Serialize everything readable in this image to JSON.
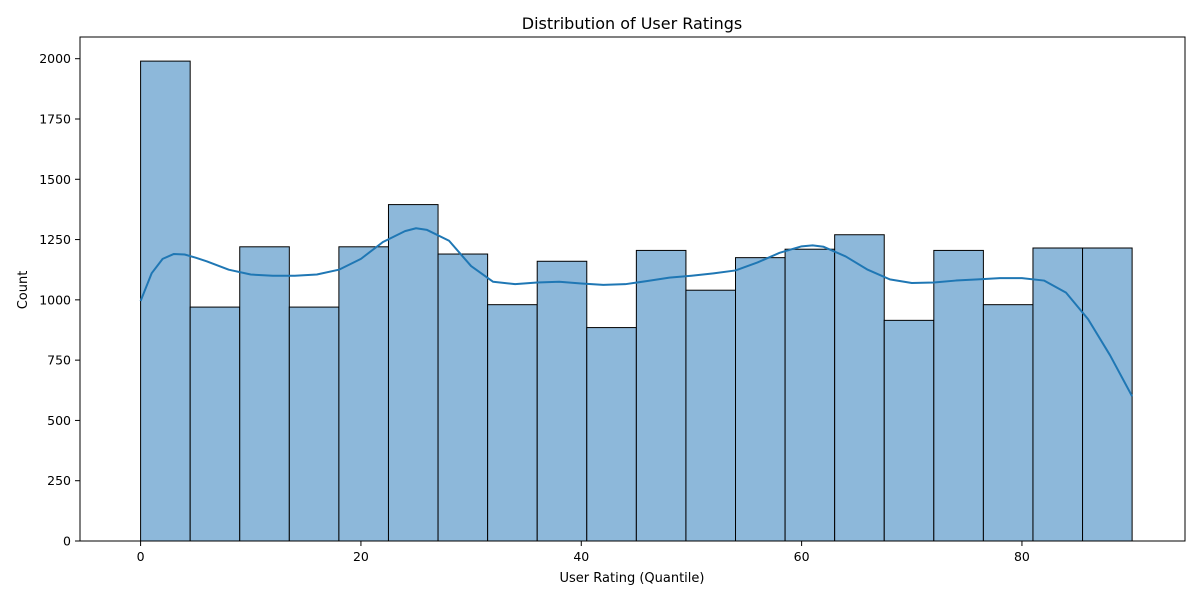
{
  "chart_data": {
    "type": "bar",
    "subtype": "histogram-with-kde",
    "title": "Distribution of User Ratings",
    "xlabel": "User Rating (Quantile)",
    "ylabel": "Count",
    "xlim": [
      -5.5,
      94.8
    ],
    "ylim": [
      0,
      2090
    ],
    "x_ticks": [
      0,
      20,
      40,
      60,
      80
    ],
    "x_tick_labels": [
      "0",
      "20",
      "40",
      "60",
      "80"
    ],
    "y_ticks": [
      0,
      250,
      500,
      750,
      1000,
      1250,
      1500,
      1750,
      2000
    ],
    "y_tick_labels": [
      "0",
      "250",
      "500",
      "750",
      "1000",
      "1250",
      "1500",
      "1750",
      "2000"
    ],
    "grid": false,
    "bin_edges": [
      0,
      4.5,
      9,
      13.5,
      18,
      22.5,
      27,
      31.5,
      36,
      40.5,
      45,
      49.5,
      54,
      58.5,
      63,
      67.5,
      72,
      76.5,
      81,
      85.5,
      90
    ],
    "values": [
      1990,
      970,
      1220,
      970,
      1220,
      1395,
      1190,
      980,
      1160,
      885,
      1205,
      1040,
      1175,
      1210,
      1270,
      915,
      1205,
      980,
      1215,
      1215
    ],
    "kde": {
      "x": [
        0,
        1,
        2,
        3,
        4,
        5,
        6,
        8,
        10,
        12,
        14,
        16,
        18,
        20,
        22,
        24,
        25,
        26,
        28,
        30,
        32,
        34,
        36,
        38,
        40,
        42,
        44,
        46,
        48,
        50,
        52,
        54,
        56,
        58,
        60,
        61,
        62,
        64,
        66,
        68,
        70,
        72,
        74,
        76,
        78,
        80,
        82,
        84,
        86,
        88,
        90
      ],
      "y": [
        995,
        1110,
        1170,
        1190,
        1188,
        1175,
        1160,
        1125,
        1105,
        1100,
        1100,
        1105,
        1125,
        1170,
        1240,
        1285,
        1297,
        1290,
        1245,
        1140,
        1075,
        1065,
        1072,
        1075,
        1068,
        1062,
        1065,
        1078,
        1092,
        1100,
        1110,
        1122,
        1155,
        1195,
        1222,
        1226,
        1220,
        1180,
        1125,
        1085,
        1070,
        1072,
        1080,
        1085,
        1090,
        1090,
        1080,
        1030,
        920,
        770,
        600
      ]
    },
    "colors": {
      "bar_fill": "#8db8da",
      "bar_edge": "#000000",
      "kde_line": "#1f77b4"
    }
  }
}
